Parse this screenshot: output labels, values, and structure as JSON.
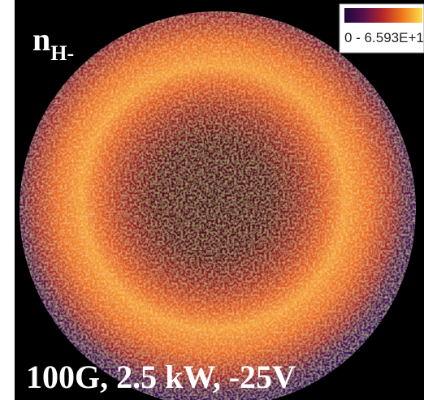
{
  "label": {
    "main": "n",
    "subscript": "H-"
  },
  "colorbar": {
    "range_label": "0 - 6.593E+1"
  },
  "caption": "100G, 2.5 kW, -25V"
}
